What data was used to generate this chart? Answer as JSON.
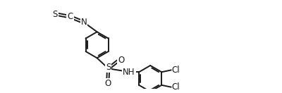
{
  "bg_color": "#ffffff",
  "line_color": "#1a1a1a",
  "line_width": 1.4,
  "font_size": 8.5,
  "fig_width": 4.0,
  "fig_height": 1.32,
  "xlim": [
    0,
    10.5
  ],
  "ylim": [
    0,
    3.5
  ]
}
